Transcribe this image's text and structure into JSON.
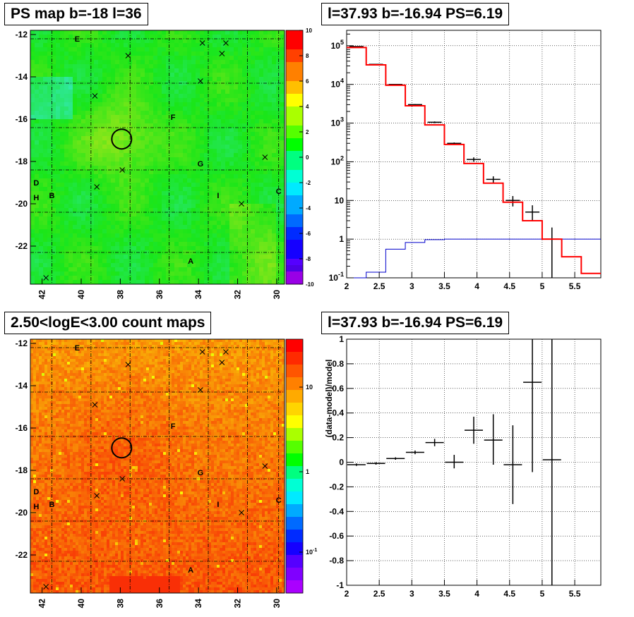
{
  "panels": {
    "tl_title": "PS map b=-18 l=36",
    "tr_title": "l=37.93 b=-16.94 PS=6.19",
    "bl_title": "2.50<logE<3.00 count maps",
    "br_title": "l=37.93 b=-16.94 PS=6.19"
  },
  "colors": {
    "data": "#000000",
    "model": "#ff0000",
    "background_model": "#0000cc"
  },
  "chart_data": [
    {
      "type": "heatmap",
      "title": "PS map b=-18 l=36",
      "x_ticks": [
        "42",
        "40",
        "38",
        "36",
        "34",
        "32",
        "30"
      ],
      "y_ticks": [
        "-12",
        "-14",
        "-16",
        "-18",
        "-20",
        "-22"
      ],
      "xlim": [
        42.6,
        29.6
      ],
      "ylim": [
        -23.8,
        -11.8
      ],
      "colorbar_ticks": [
        "10",
        "8",
        "6",
        "4",
        "2",
        "0",
        "-2",
        "-4",
        "-6",
        "-8",
        "-10"
      ],
      "colorbar_range": [
        -10,
        10
      ],
      "labels": [
        {
          "text": "E",
          "l": 40.2,
          "b": -12.2
        },
        {
          "text": "F",
          "l": 35.3,
          "b": -15.9
        },
        {
          "text": "G",
          "l": 33.9,
          "b": -18.1
        },
        {
          "text": "D",
          "l": 42.3,
          "b": -19.0
        },
        {
          "text": "B",
          "l": 41.5,
          "b": -19.6
        },
        {
          "text": "H",
          "l": 42.3,
          "b": -19.7
        },
        {
          "text": "I",
          "l": 33.0,
          "b": -19.6
        },
        {
          "text": "C",
          "l": 29.9,
          "b": -19.4
        },
        {
          "text": "A",
          "l": 34.4,
          "b": -22.7
        }
      ],
      "markers": [
        {
          "l": 33.8,
          "b": -12.4
        },
        {
          "l": 32.6,
          "b": -12.4
        },
        {
          "l": 32.8,
          "b": -12.9
        },
        {
          "l": 37.6,
          "b": -13.0
        },
        {
          "l": 33.9,
          "b": -14.2
        },
        {
          "l": 39.3,
          "b": -14.9
        },
        {
          "l": 37.9,
          "b": -18.4
        },
        {
          "l": 39.2,
          "b": -19.2
        },
        {
          "l": 30.6,
          "b": -17.8
        },
        {
          "l": 31.8,
          "b": -20.0
        },
        {
          "l": 41.8,
          "b": -23.5
        }
      ],
      "circle": {
        "l": 37.93,
        "b": -16.94
      }
    },
    {
      "type": "line",
      "title": "l=37.93 b=-16.94 PS=6.19",
      "x_ticks": [
        "2",
        "2.5",
        "3",
        "3.5",
        "4",
        "4.5",
        "5",
        "5.5"
      ],
      "y_ticks": [
        "10^-1",
        "1",
        "10",
        "10^2",
        "10^3",
        "10^4",
        "10^5"
      ],
      "xlim": [
        2,
        5.9
      ],
      "ylim": [
        0.1,
        250000
      ],
      "y_scale": "log",
      "model_bins": [
        2.0,
        2.3,
        2.6,
        2.9,
        3.2,
        3.5,
        3.8,
        4.1,
        4.4,
        4.7,
        5.0,
        5.3,
        5.6,
        5.9
      ],
      "model_values": [
        90000,
        32000,
        9500,
        2800,
        900,
        280,
        90,
        28,
        9,
        3,
        1,
        0.35,
        0.13
      ],
      "background_bins": [
        2.0,
        2.3,
        2.6,
        2.9,
        3.2,
        3.5,
        5.9
      ],
      "background_values": [
        0.1,
        0.14,
        0.55,
        0.82,
        0.97,
        1.0
      ],
      "data_points": [
        {
          "x": 2.15,
          "y": 95000,
          "lo": 94000,
          "hi": 96000
        },
        {
          "x": 2.45,
          "y": 33000,
          "lo": 32600,
          "hi": 33400
        },
        {
          "x": 2.75,
          "y": 10000,
          "lo": 9800,
          "hi": 10200
        },
        {
          "x": 3.05,
          "y": 3000,
          "lo": 2900,
          "hi": 3100
        },
        {
          "x": 3.35,
          "y": 1050,
          "lo": 1000,
          "hi": 1100
        },
        {
          "x": 3.65,
          "y": 300,
          "lo": 285,
          "hi": 315
        },
        {
          "x": 3.95,
          "y": 115,
          "lo": 100,
          "hi": 130
        },
        {
          "x": 4.25,
          "y": 35,
          "lo": 28,
          "hi": 42
        },
        {
          "x": 4.55,
          "y": 10,
          "lo": 7,
          "hi": 13
        },
        {
          "x": 4.85,
          "y": 5,
          "lo": 3,
          "hi": 7.5
        },
        {
          "x": 5.15,
          "y": 1,
          "lo": 0.1,
          "hi": 2
        }
      ]
    },
    {
      "type": "heatmap",
      "title": "2.50<logE<3.00 count maps",
      "x_ticks": [
        "42",
        "40",
        "38",
        "36",
        "34",
        "32",
        "30"
      ],
      "y_ticks": [
        "-12",
        "-14",
        "-16",
        "-18",
        "-20",
        "-22"
      ],
      "colorbar_ticks": [
        "10",
        "1",
        "10^-1"
      ],
      "colorbar_scale": "log",
      "labels": [
        {
          "text": "E",
          "l": 40.2,
          "b": -12.2
        },
        {
          "text": "F",
          "l": 35.3,
          "b": -15.9
        },
        {
          "text": "G",
          "l": 33.9,
          "b": -18.1
        },
        {
          "text": "D",
          "l": 42.3,
          "b": -19.0
        },
        {
          "text": "B",
          "l": 41.5,
          "b": -19.6
        },
        {
          "text": "H",
          "l": 42.3,
          "b": -19.7
        },
        {
          "text": "I",
          "l": 33.0,
          "b": -19.6
        },
        {
          "text": "C",
          "l": 29.9,
          "b": -19.4
        },
        {
          "text": "A",
          "l": 34.4,
          "b": -22.7
        }
      ],
      "markers": [
        {
          "l": 33.8,
          "b": -12.4
        },
        {
          "l": 32.6,
          "b": -12.4
        },
        {
          "l": 32.8,
          "b": -12.9
        },
        {
          "l": 37.6,
          "b": -13.0
        },
        {
          "l": 33.9,
          "b": -14.2
        },
        {
          "l": 39.3,
          "b": -14.9
        },
        {
          "l": 37.9,
          "b": -18.4
        },
        {
          "l": 39.2,
          "b": -19.2
        },
        {
          "l": 30.6,
          "b": -17.8
        },
        {
          "l": 31.8,
          "b": -20.0
        },
        {
          "l": 41.8,
          "b": -23.5
        }
      ],
      "circle": {
        "l": 37.93,
        "b": -16.94
      }
    },
    {
      "type": "scatter",
      "title": "l=37.93 b=-16.94 PS=6.19",
      "ylabel": "(data-model)/model",
      "x_ticks": [
        "2",
        "2.5",
        "3",
        "3.5",
        "4",
        "4.5",
        "5",
        "5.5"
      ],
      "y_ticks": [
        "1",
        "0.8",
        "0.6",
        "0.4",
        "0.2",
        "0",
        "-0.2",
        "-0.4",
        "-0.6",
        "-0.8",
        "-1"
      ],
      "xlim": [
        2,
        5.9
      ],
      "ylim": [
        -1,
        1
      ],
      "points": [
        {
          "x": 2.15,
          "y": -0.02,
          "lo": -0.03,
          "hi": -0.01
        },
        {
          "x": 2.45,
          "y": -0.01,
          "lo": -0.02,
          "hi": 0.0
        },
        {
          "x": 2.75,
          "y": 0.03,
          "lo": 0.02,
          "hi": 0.04
        },
        {
          "x": 3.05,
          "y": 0.08,
          "lo": 0.065,
          "hi": 0.095
        },
        {
          "x": 3.35,
          "y": 0.16,
          "lo": 0.13,
          "hi": 0.19
        },
        {
          "x": 3.65,
          "y": 0.0,
          "lo": -0.05,
          "hi": 0.06
        },
        {
          "x": 3.95,
          "y": 0.26,
          "lo": 0.15,
          "hi": 0.37
        },
        {
          "x": 4.25,
          "y": 0.18,
          "lo": -0.02,
          "hi": 0.39
        },
        {
          "x": 4.55,
          "y": -0.02,
          "lo": -0.34,
          "hi": 0.3
        },
        {
          "x": 4.85,
          "y": 0.65,
          "lo": -0.08,
          "hi": 1.0
        },
        {
          "x": 5.15,
          "y": 0.02,
          "lo": -1.0,
          "hi": 1.0
        }
      ]
    }
  ]
}
